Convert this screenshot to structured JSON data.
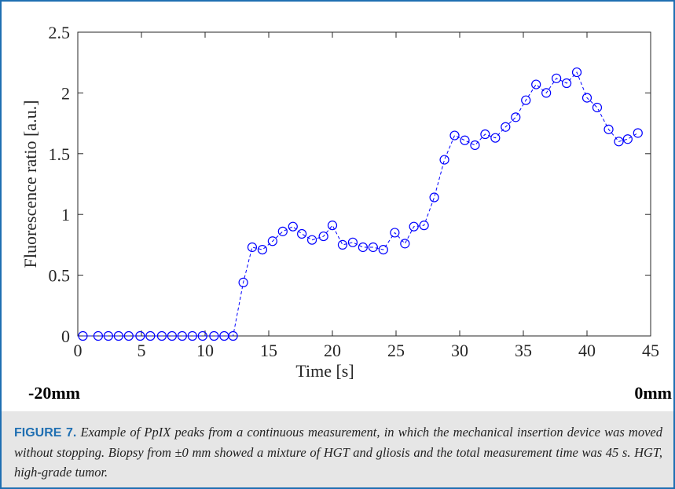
{
  "chart_data": {
    "type": "scatter",
    "xlabel": "Time [s]",
    "ylabel": "Fluorescence ratio [a.u.]",
    "xlim": [
      0,
      45
    ],
    "ylim": [
      0,
      2.5
    ],
    "xticks": [
      0,
      5,
      10,
      15,
      20,
      25,
      30,
      35,
      40,
      45
    ],
    "yticks": [
      0,
      0.5,
      1,
      1.5,
      2,
      2.5
    ],
    "ytick_labels": [
      "0",
      "0.5",
      "1",
      "1.5",
      "2",
      "2.5"
    ],
    "grid": false,
    "marker": "open-circle",
    "line_style": "dashed",
    "color": "#0000ff",
    "series": [
      {
        "x": [
          0.4,
          1.6,
          2.4,
          3.2,
          4.0,
          4.9,
          5.7,
          6.6,
          7.4,
          8.2,
          9.0,
          9.8,
          10.7,
          11.5,
          12.2,
          13.0,
          13.7,
          14.5,
          15.3,
          16.1,
          16.9,
          17.6,
          18.4,
          19.3,
          20.0,
          20.8,
          21.6,
          22.4,
          23.2,
          24.0,
          24.9,
          25.7,
          26.4,
          27.2,
          28.0,
          28.8,
          29.6,
          30.4,
          31.2,
          32.0,
          32.8,
          33.6,
          34.4,
          35.2,
          36.0,
          36.8,
          37.6,
          38.4,
          39.2,
          40.0,
          40.8,
          41.7,
          42.5,
          43.2,
          44.0
        ],
        "y": [
          0.0,
          0.0,
          0.0,
          0.0,
          0.0,
          0.0,
          0.0,
          0.0,
          0.0,
          0.0,
          0.0,
          0.0,
          0.0,
          0.0,
          0.0,
          0.44,
          0.73,
          0.71,
          0.78,
          0.86,
          0.9,
          0.84,
          0.79,
          0.82,
          0.91,
          0.75,
          0.77,
          0.73,
          0.73,
          0.71,
          0.85,
          0.76,
          0.9,
          0.91,
          1.14,
          1.45,
          1.65,
          1.61,
          1.57,
          1.66,
          1.63,
          1.72,
          1.8,
          1.94,
          2.07,
          2.0,
          2.12,
          2.08,
          2.17,
          1.96,
          1.88,
          1.7,
          1.6,
          1.62,
          1.67
        ]
      }
    ]
  },
  "markers": {
    "left": "-20mm",
    "right": "0mm"
  },
  "caption": {
    "label": "FIGURE 7.",
    "text": "Example of PpIX peaks from a continuous measurement, in which the mechanical insertion device was moved without stopping. Biopsy from ±0 mm showed a mixture of HGT and gliosis and the total measurement time was 45 s. HGT, high-grade tumor."
  }
}
